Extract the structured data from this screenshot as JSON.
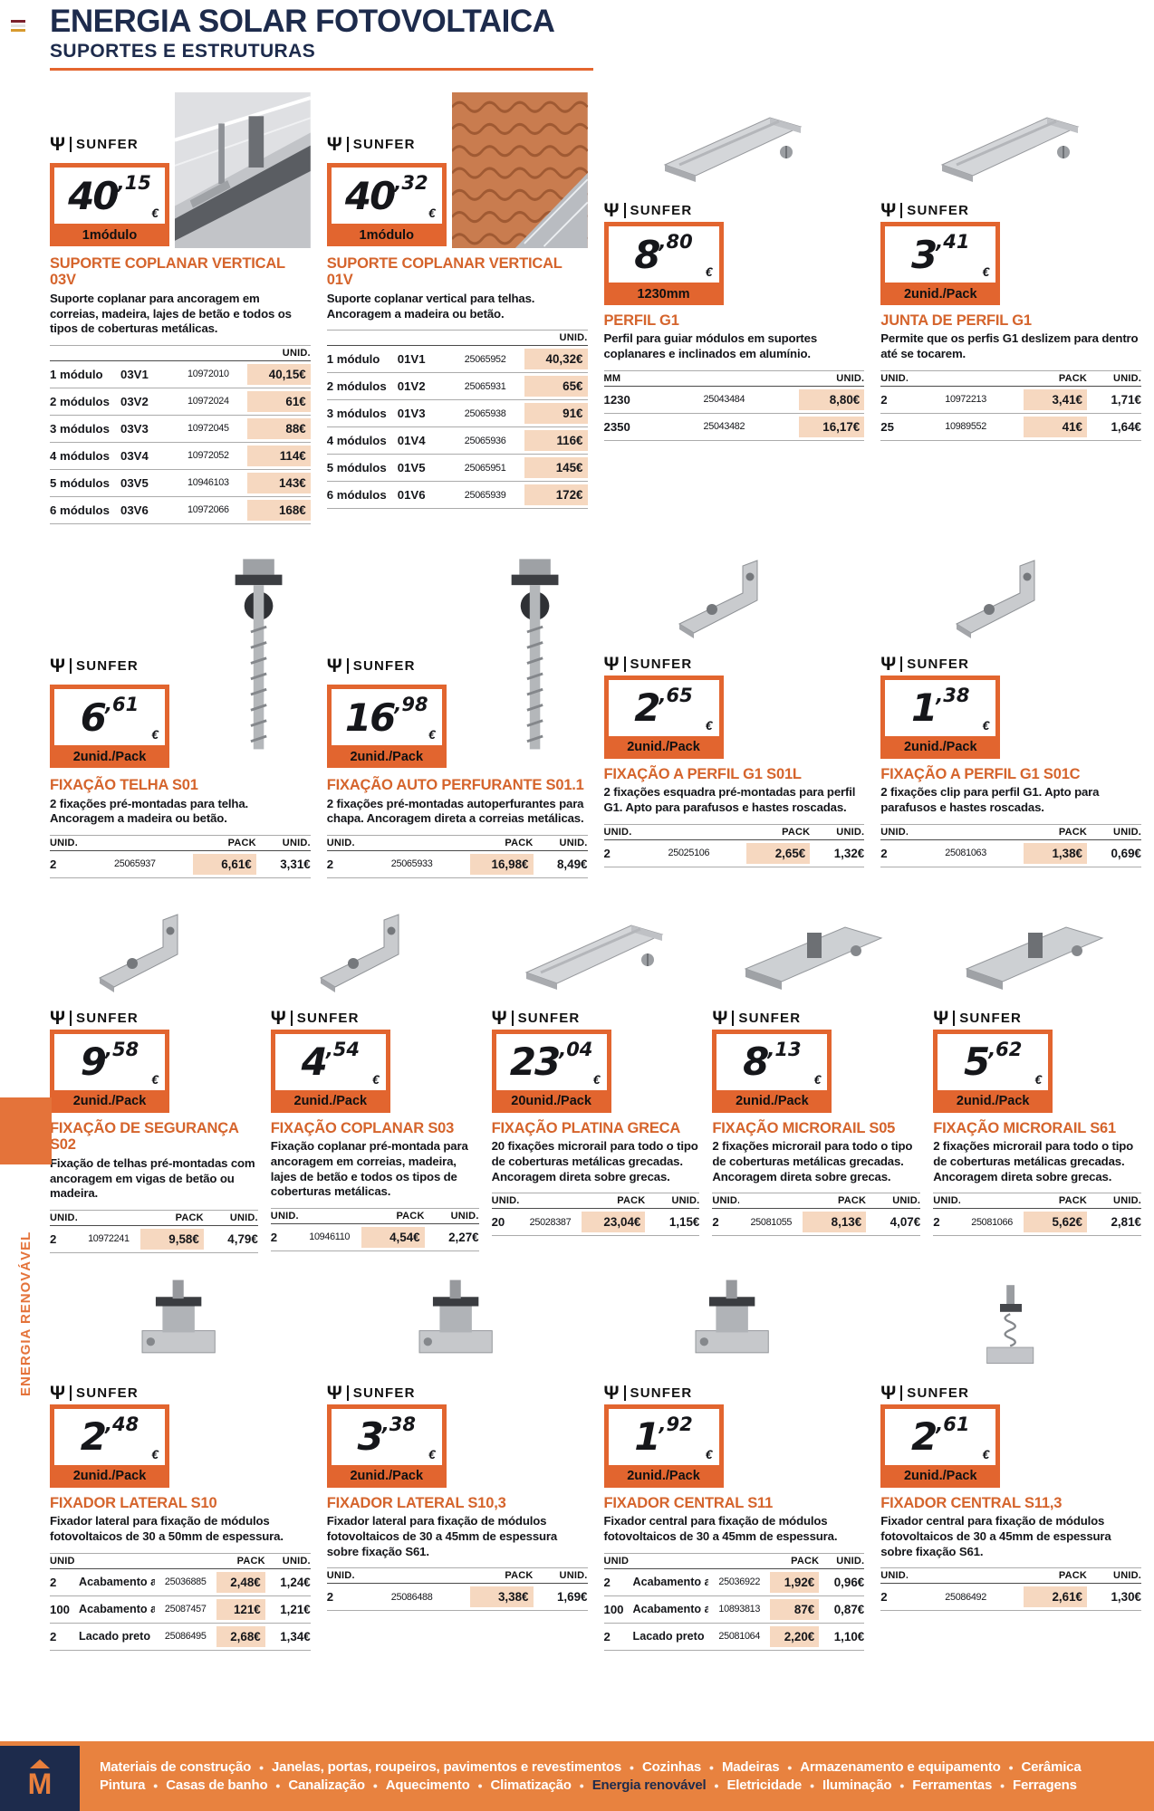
{
  "header": {
    "title": "ENERGIA SOLAR FOTOVOLTAICA",
    "subtitle": "SUPORTES E ESTRUTURAS"
  },
  "sidebar": {
    "label": "ENERGIA RENOVÁVEL"
  },
  "brand": "SUNFER",
  "currency": "€",
  "colors": {
    "accent_orange": "#e4662f",
    "navy": "#1d2b4c",
    "peach_highlight": "#f6d8c0",
    "footer_orange": "#e8823f"
  },
  "products": [
    {
      "row": 1,
      "image": "scene",
      "image_pos": "right",
      "title": "SUPORTE COPLANAR VERTICAL 03V",
      "description": "Suporte coplanar para ancoragem em correias, madeira, lajes de betão e todos os tipos de coberturas metálicas.",
      "price_int": "40",
      "price_dec": ",15",
      "badge_label": "1módulo",
      "table": {
        "layout": "A",
        "headers": [
          "UNID."
        ],
        "rows": [
          [
            "1 módulo",
            "03V1",
            "10972010",
            "40,15€"
          ],
          [
            "2 módulos",
            "03V2",
            "10972024",
            "61€"
          ],
          [
            "3 módulos",
            "03V3",
            "10972045",
            "88€"
          ],
          [
            "4 módulos",
            "03V4",
            "10972052",
            "114€"
          ],
          [
            "5 módulos",
            "03V5",
            "10946103",
            "143€"
          ],
          [
            "6 módulos",
            "03V6",
            "10972066",
            "168€"
          ]
        ]
      }
    },
    {
      "row": 1,
      "image": "roof",
      "image_pos": "right",
      "title": "SUPORTE COPLANAR VERTICAL 01V",
      "description": "Suporte coplanar vertical para telhas. Ancoragem a madeira ou betão.",
      "price_int": "40",
      "price_dec": ",32",
      "badge_label": "1módulo",
      "table": {
        "layout": "A",
        "headers": [
          "UNID."
        ],
        "rows": [
          [
            "1 módulo",
            "01V1",
            "25065952",
            "40,32€"
          ],
          [
            "2 módulos",
            "01V2",
            "25065931",
            "65€"
          ],
          [
            "3 módulos",
            "01V3",
            "25065938",
            "91€"
          ],
          [
            "4 módulos",
            "01V4",
            "25065936",
            "116€"
          ],
          [
            "5 módulos",
            "01V5",
            "25065951",
            "145€"
          ],
          [
            "6 módulos",
            "01V6",
            "25065939",
            "172€"
          ]
        ]
      }
    },
    {
      "row": 1,
      "image": "bar",
      "image_pos": "top",
      "title": "PERFIL G1",
      "description": "Perfil para guiar módulos em suportes coplanares e inclinados em alumínio.",
      "price_int": "8",
      "price_dec": ",80",
      "badge_label": "1230mm",
      "table": {
        "layout": "B",
        "headers": [
          "MM",
          "UNID."
        ],
        "rows": [
          [
            "1230",
            "25043484",
            "8,80€"
          ],
          [
            "2350",
            "25043482",
            "16,17€"
          ]
        ]
      }
    },
    {
      "row": 1,
      "image": "bar",
      "image_pos": "top",
      "title": "JUNTA DE PERFIL G1",
      "description": "Permite que os perfis G1 deslizem para dentro até se tocarem.",
      "price_int": "3",
      "price_dec": ",41",
      "badge_label": "2unid./Pack",
      "table": {
        "layout": "C",
        "headers": [
          "UNID.",
          "PACK",
          "UNID."
        ],
        "rows": [
          [
            "2",
            "10972213",
            "3,41€",
            "1,71€"
          ],
          [
            "25",
            "10989552",
            "41€",
            "1,64€"
          ]
        ]
      }
    },
    {
      "row": 2,
      "image": "screwV",
      "image_pos": "right",
      "title": "FIXAÇÃO TELHA S01",
      "description": "2 fixações pré-montadas para telha. Ancoragem a madeira ou betão.",
      "price_int": "6",
      "price_dec": ",61",
      "badge_label": "2unid./Pack",
      "table": {
        "layout": "C",
        "headers": [
          "UNID.",
          "PACK",
          "UNID."
        ],
        "rows": [
          [
            "2",
            "25065937",
            "6,61€",
            "3,31€"
          ]
        ]
      }
    },
    {
      "row": 2,
      "image": "screwV",
      "image_pos": "right",
      "title": "FIXAÇÃO AUTO PERFURANTE S01.1",
      "description": "2 fixações pré-montadas autoperfurantes para chapa. Ancoragem direta a correias metálicas.",
      "price_int": "16",
      "price_dec": ",98",
      "badge_label": "2unid./Pack",
      "table": {
        "layout": "C",
        "headers": [
          "UNID.",
          "PACK",
          "UNID."
        ],
        "rows": [
          [
            "2",
            "25065933",
            "16,98€",
            "8,49€"
          ]
        ]
      }
    },
    {
      "row": 2,
      "image": "bracket",
      "image_pos": "top",
      "title": "FIXAÇÃO A PERFIL G1 S01L",
      "description": "2 fixações esquadra pré-montadas para perfil G1. Apto para parafusos e hastes roscadas.",
      "price_int": "2",
      "price_dec": ",65",
      "badge_label": "2unid./Pack",
      "table": {
        "layout": "C",
        "headers": [
          "UNID.",
          "PACK",
          "UNID."
        ],
        "rows": [
          [
            "2",
            "25025106",
            "2,65€",
            "1,32€"
          ]
        ]
      }
    },
    {
      "row": 2,
      "image": "bracket",
      "image_pos": "top",
      "title": "FIXAÇÃO A PERFIL G1 S01C",
      "description": "2 fixações clip para perfil G1. Apto para parafusos e hastes roscadas.",
      "price_int": "1",
      "price_dec": ",38",
      "badge_label": "2unid./Pack",
      "table": {
        "layout": "C",
        "headers": [
          "UNID.",
          "PACK",
          "UNID."
        ],
        "rows": [
          [
            "2",
            "25081063",
            "1,38€",
            "0,69€"
          ]
        ]
      }
    },
    {
      "row": 3,
      "image": "bracket",
      "image_pos": "top",
      "title": "FIXAÇÃO DE SEGURANÇA S02",
      "description": "Fixação de telhas pré-montadas com ancoragem em vigas de betão ou madeira.",
      "price_int": "9",
      "price_dec": ",58",
      "badge_label": "2unid./Pack",
      "table": {
        "layout": "C",
        "headers": [
          "UNID.",
          "PACK",
          "UNID."
        ],
        "rows": [
          [
            "2",
            "10972241",
            "9,58€",
            "4,79€"
          ]
        ]
      }
    },
    {
      "row": 3,
      "image": "bracket",
      "image_pos": "top",
      "title": "FIXAÇÃO COPLANAR S03",
      "description": "Fixação coplanar pré-montada para ancoragem em correias, madeira, lajes de betão e todos os tipos de coberturas metálicas.",
      "price_int": "4",
      "price_dec": ",54",
      "badge_label": "2unid./Pack",
      "table": {
        "layout": "C",
        "headers": [
          "UNID.",
          "PACK",
          "UNID."
        ],
        "rows": [
          [
            "2",
            "10946110",
            "4,54€",
            "2,27€"
          ]
        ]
      }
    },
    {
      "row": 3,
      "image": "bar",
      "image_pos": "top",
      "title": "FIXAÇÃO PLATINA GRECA",
      "description": "20 fixações microrail para todo o tipo de coberturas metálicas grecadas. Ancoragem direta sobre grecas.",
      "price_int": "23",
      "price_dec": ",04",
      "badge_label": "20unid./Pack",
      "table": {
        "layout": "C",
        "headers": [
          "UNID.",
          "PACK",
          "UNID."
        ],
        "rows": [
          [
            "20",
            "25028387",
            "23,04€",
            "1,15€"
          ]
        ]
      }
    },
    {
      "row": 3,
      "image": "rail",
      "image_pos": "top",
      "title": "FIXAÇÃO MICRORAIL S05",
      "description": "2 fixações microrail para todo o tipo de coberturas metálicas grecadas. Ancoragem direta sobre grecas.",
      "price_int": "8",
      "price_dec": ",13",
      "badge_label": "2unid./Pack",
      "table": {
        "layout": "C",
        "headers": [
          "UNID.",
          "PACK",
          "UNID."
        ],
        "rows": [
          [
            "2",
            "25081055",
            "8,13€",
            "4,07€"
          ]
        ]
      }
    },
    {
      "row": 3,
      "image": "rail",
      "image_pos": "top",
      "title": "FIXAÇÃO MICRORAIL S61",
      "description": "2 fixações microrail para todo o tipo de coberturas metálicas grecadas. Ancoragem direta sobre grecas.",
      "price_int": "5",
      "price_dec": ",62",
      "badge_label": "2unid./Pack",
      "table": {
        "layout": "C",
        "headers": [
          "UNID.",
          "PACK",
          "UNID."
        ],
        "rows": [
          [
            "2",
            "25081066",
            "5,62€",
            "2,81€"
          ]
        ]
      }
    },
    {
      "row": 4,
      "image": "clamp",
      "image_pos": "top",
      "title": "FIXADOR LATERAL S10",
      "description": "Fixador lateral para fixação de módulos fotovoltaicos de 30 a 50mm de espessura.",
      "price_int": "2",
      "price_dec": ",48",
      "badge_label": "2unid./Pack",
      "table": {
        "layout": "D",
        "headers": [
          "UNID.",
          "PACK",
          "UNID."
        ],
        "rows": [
          [
            "2",
            "Acabamento alumínio",
            "25036885",
            "2,48€",
            "1,24€"
          ],
          [
            "100",
            "Acabamento alumínio",
            "25087457",
            "121€",
            "1,21€"
          ],
          [
            "2",
            "Lacado preto",
            "25086495",
            "2,68€",
            "1,34€"
          ]
        ]
      }
    },
    {
      "row": 4,
      "image": "clamp",
      "image_pos": "top",
      "title": "FIXADOR LATERAL S10,3",
      "description": "Fixador lateral para fixação de módulos fotovoltaicos de 30 a 45mm de espessura sobre fixação S61.",
      "price_int": "3",
      "price_dec": ",38",
      "badge_label": "2unid./Pack",
      "table": {
        "layout": "C",
        "headers": [
          "UNID.",
          "PACK",
          "UNID."
        ],
        "rows": [
          [
            "2",
            "25086488",
            "3,38€",
            "1,69€"
          ]
        ]
      }
    },
    {
      "row": 4,
      "image": "clamp",
      "image_pos": "top",
      "title": "FIXADOR CENTRAL S11",
      "description": "Fixador central para fixação de módulos fotovoltaicos de 30 a 45mm de espessura.",
      "price_int": "1",
      "price_dec": ",92",
      "badge_label": "2unid./Pack",
      "table": {
        "layout": "D",
        "headers": [
          "UNID.",
          "PACK",
          "UNID."
        ],
        "rows": [
          [
            "2",
            "Acabamento alumínio",
            "25036922",
            "1,92€",
            "0,96€"
          ],
          [
            "100",
            "Acabamento alumínio",
            "10893813",
            "87€",
            "0,87€"
          ],
          [
            "2",
            "Lacado preto",
            "25081064",
            "2,20€",
            "1,10€"
          ]
        ]
      }
    },
    {
      "row": 4,
      "image": "spring",
      "image_pos": "top",
      "title": "FIXADOR CENTRAL S11,3",
      "description": "Fixador central para fixação de módulos fotovoltaicos de 30 a 45mm de espessura sobre fixação S61.",
      "price_int": "2",
      "price_dec": ",61",
      "badge_label": "2unid./Pack",
      "table": {
        "layout": "C",
        "headers": [
          "UNID.",
          "PACK",
          "UNID."
        ],
        "rows": [
          [
            "2",
            "25086492",
            "2,61€",
            "1,30€"
          ]
        ]
      }
    }
  ],
  "footer": {
    "logo_letter": "M",
    "lines": [
      [
        {
          "label": "Materiais de construção",
          "highlight": false
        },
        {
          "label": "Janelas, portas, roupeiros, pavimentos e revestimentos",
          "highlight": false
        },
        {
          "label": "Cozinhas",
          "highlight": false
        },
        {
          "label": "Madeiras",
          "highlight": false
        },
        {
          "label": "Armazenamento e equipamento",
          "highlight": false
        },
        {
          "label": "Cerâmica",
          "highlight": false
        }
      ],
      [
        {
          "label": "Pintura",
          "highlight": false
        },
        {
          "label": "Casas de banho",
          "highlight": false
        },
        {
          "label": "Canalização",
          "highlight": false
        },
        {
          "label": "Aquecimento",
          "highlight": false
        },
        {
          "label": "Climatização",
          "highlight": false
        },
        {
          "label": "Energia renovável",
          "highlight": true
        },
        {
          "label": "Eletricidade",
          "highlight": false
        },
        {
          "label": "Iluminação",
          "highlight": false
        },
        {
          "label": "Ferramentas",
          "highlight": false
        },
        {
          "label": "Ferragens",
          "highlight": false
        }
      ]
    ]
  }
}
